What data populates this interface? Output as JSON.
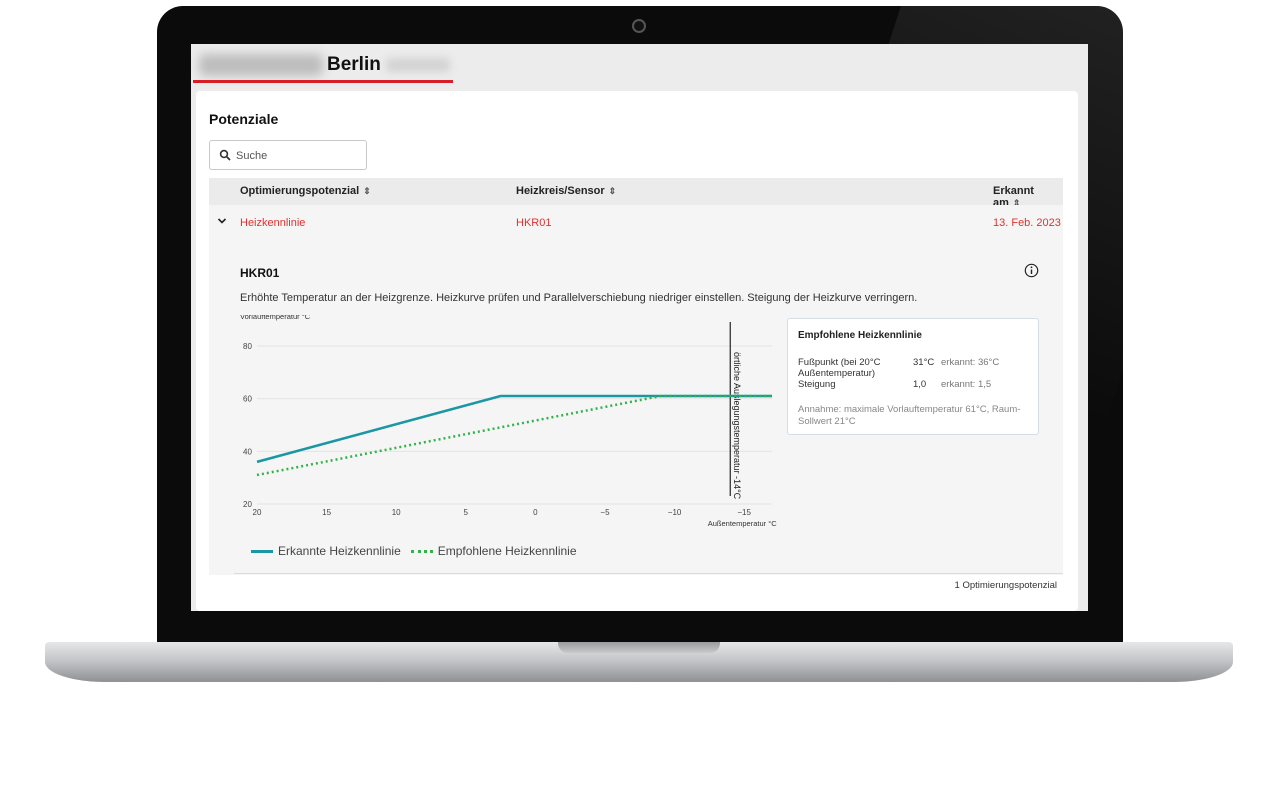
{
  "header": {
    "city": "Berlin"
  },
  "page": {
    "title": "Potenziale"
  },
  "search": {
    "placeholder": "Suche"
  },
  "table": {
    "columns": [
      "Optimierungspotenzial",
      "Heizkreis/Sensor",
      "Erkannt am"
    ],
    "row": {
      "potential": "Heizkennlinie",
      "circuit": "HKR01",
      "date": "13. Feb. 2023"
    },
    "footer": "1 Optimierungspotenzial"
  },
  "detail": {
    "title": "HKR01",
    "description": "Erhöhte Temperatur an der Heizgrenze. Heizkurve prüfen und Parallelverschiebung niedriger einstellen. Steigung der Heizkurve verringern."
  },
  "recommendation": {
    "title": "Empfohlene Heizkennlinie",
    "rows": [
      {
        "label": "Fußpunkt (bei 20°C Außentemperatur)",
        "value": "31°C",
        "detected": "erkannt: 36°C"
      },
      {
        "label": "Steigung",
        "value": "1,0",
        "detected": "erkannt: 1,5"
      }
    ],
    "note": "Annahme: maximale Vorlauftemperatur 61°C, Raum-Sollwert 21°C"
  },
  "colors": {
    "accent": "#d81f26",
    "link": "#e0312f",
    "detected_line": "#1a97a3",
    "recommended_line": "#32b34a"
  },
  "chart_data": {
    "type": "line",
    "ylabel": "Vorlauftemperatur °C",
    "xlabel": "Außentemperatur °C",
    "xlim": [
      20,
      -17
    ],
    "ylim": [
      20,
      80
    ],
    "x_ticks": [
      "20",
      "15",
      "10",
      "5",
      "0",
      "−5",
      "−10",
      "−15"
    ],
    "x_tick_values": [
      20,
      15,
      10,
      5,
      0,
      -5,
      -10,
      -15
    ],
    "y_ticks": [
      "20",
      "40",
      "60",
      "80"
    ],
    "y_tick_values": [
      20,
      40,
      60,
      80
    ],
    "grid": true,
    "series": [
      {
        "name": "Erkannte Heizkennlinie",
        "x": [
          20,
          2.5,
          -17
        ],
        "y": [
          36,
          61,
          61
        ]
      },
      {
        "name": "Empfohlene Heizkennlinie",
        "x": [
          20,
          -9,
          -17
        ],
        "y": [
          31,
          61,
          61
        ]
      }
    ],
    "marker": {
      "x": -14,
      "label": "örtliche Auslegungstemperatur -14°C"
    },
    "legend": "bottom-left"
  }
}
